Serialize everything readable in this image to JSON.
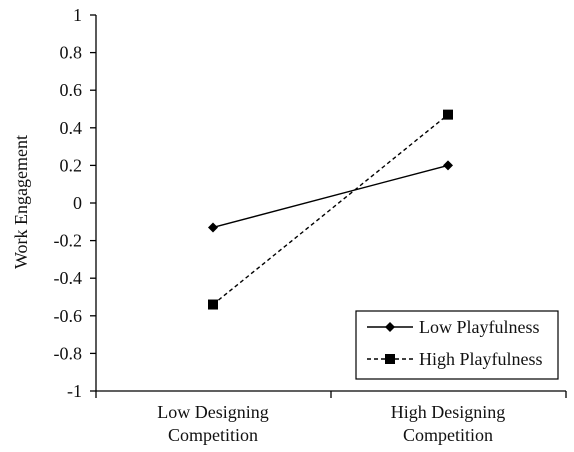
{
  "chart_data": {
    "type": "line",
    "categories": [
      "Low Designing Competition",
      "High Designing Competition"
    ],
    "category_lines": [
      [
        "Low Designing",
        "Competition"
      ],
      [
        "High Designing",
        "Competition"
      ]
    ],
    "series": [
      {
        "name": "Low Playfulness",
        "values": [
          -0.13,
          0.2
        ],
        "line_style": "solid",
        "marker": "diamond"
      },
      {
        "name": "High Playfulness",
        "values": [
          -0.54,
          0.47
        ],
        "line_style": "dashed",
        "marker": "square"
      }
    ],
    "ylabel": "Work Engagement",
    "xlabel": "",
    "ylim": [
      -1,
      1
    ],
    "yticks": [
      1,
      0.8,
      0.6,
      0.4,
      0.2,
      0,
      -0.2,
      -0.4,
      -0.6,
      -0.8,
      -1
    ],
    "ytick_labels": [
      "1",
      "0.8",
      "0.6",
      "0.4",
      "0.2",
      "0",
      "-0.2",
      "-0.4",
      "-0.6",
      "-0.8",
      "-1"
    ],
    "grid": false,
    "legend_position": "bottom-right",
    "colors": {
      "line": "#000000",
      "text": "#111111"
    }
  }
}
